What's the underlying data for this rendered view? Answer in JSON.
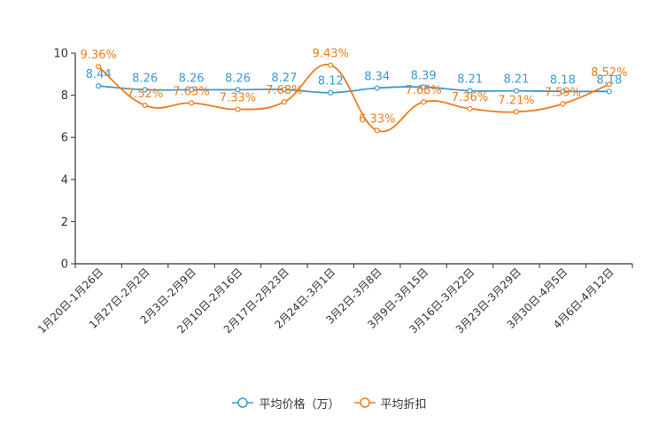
{
  "chart_data": {
    "type": "line",
    "title": "",
    "xlabel": "",
    "ylabel": "",
    "ylim": [
      0,
      10
    ],
    "yticks": [
      "0",
      "2",
      "4",
      "6",
      "8",
      "10"
    ],
    "categories": [
      "1月20日-1月26日",
      "1月27日-2月2日",
      "2月3日-2月9日",
      "2月10日-2月16日",
      "2月17日-2月23日",
      "2月24日-3月1日",
      "3月2日-3月8日",
      "3月9日-3月15日",
      "3月16日-3月22日",
      "3月23日-3月29日",
      "3月30日-4月5日",
      "4月6日-4月12日"
    ],
    "series": [
      {
        "name": "平均价格（万）",
        "color": "#3b9bcf",
        "values": [
          8.44,
          8.26,
          8.26,
          8.26,
          8.27,
          8.12,
          8.34,
          8.39,
          8.21,
          8.21,
          8.18,
          8.18
        ],
        "labels": [
          "8.44",
          "8.26",
          "8.26",
          "8.26",
          "8.27",
          "8.12",
          "8.34",
          "8.39",
          "8.21",
          "8.21",
          "8.18",
          "8.18"
        ]
      },
      {
        "name": "平均折扣",
        "color": "#f07b1a",
        "values": [
          9.36,
          7.52,
          7.63,
          7.33,
          7.68,
          9.43,
          6.33,
          7.68,
          7.36,
          7.21,
          7.59,
          8.52
        ],
        "labels": [
          "9.36%",
          "7.52%",
          "7.63%",
          "7.33%",
          "7.68%",
          "9.43%",
          "6.33%",
          "7.68%",
          "7.36%",
          "7.21%",
          "7.59%",
          "8.52%"
        ]
      }
    ],
    "legend_position": "bottom"
  }
}
